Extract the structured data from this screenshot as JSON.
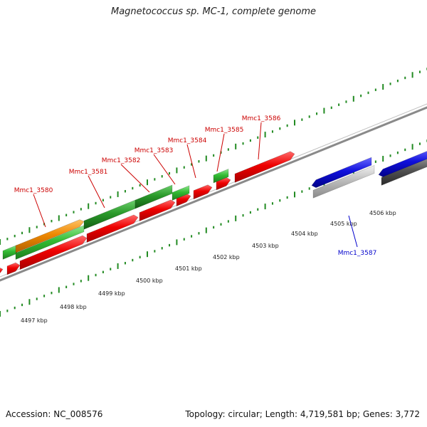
{
  "title": "Magnetococcus sp. MC-1, complete genome",
  "footer": {
    "accession": "Accession: NC_008576",
    "summary": "Topology: circular; Length: 4,719,581 bp; Genes: 3,772"
  },
  "colors": {
    "background": "#ffffff",
    "backbone": "#888888",
    "tick": "#228B22",
    "forward_label": "#cc0000",
    "reverse_label": "#0000cc",
    "red_feature": "#ee0000",
    "green_feature": "#33bb33",
    "orange_feature": "#ee8800",
    "blue_feature": "#1010dd",
    "gray_feature": "#bbbbbb",
    "dark_feature": "#555555"
  },
  "axis": {
    "unit": "kbp",
    "ticks": [
      "4497 kbp",
      "4498 kbp",
      "4499 kbp",
      "4500 kbp",
      "4501 kbp",
      "4502 kbp",
      "4503 kbp",
      "4504 kbp",
      "4505 kbp",
      "4506 kbp"
    ]
  },
  "gene_labels": [
    {
      "text": "Mmc1_3580",
      "strand": "forward"
    },
    {
      "text": "Mmc1_3581",
      "strand": "forward"
    },
    {
      "text": "Mmc1_3582",
      "strand": "forward"
    },
    {
      "text": "Mmc1_3583",
      "strand": "forward"
    },
    {
      "text": "Mmc1_3584",
      "strand": "forward"
    },
    {
      "text": "Mmc1_3585",
      "strand": "forward"
    },
    {
      "text": "Mmc1_3586",
      "strand": "forward"
    },
    {
      "text": "Mmc1_3587",
      "strand": "reverse"
    }
  ]
}
